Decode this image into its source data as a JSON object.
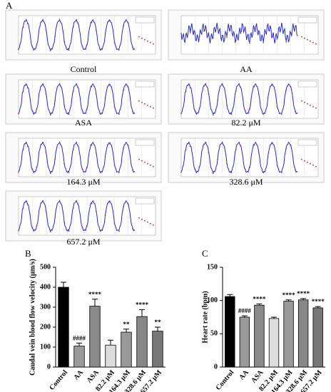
{
  "panel_a": {
    "label": "A",
    "traces": [
      {
        "caption": "Control"
      },
      {
        "caption": "AA"
      },
      {
        "caption": "ASA"
      },
      {
        "caption": "82.2 μM"
      },
      {
        "caption": "164.3 μM"
      },
      {
        "caption": "328.6 μM"
      },
      {
        "caption": "657.2 μM"
      }
    ]
  },
  "chart_data": [
    {
      "type": "bar",
      "label": "B",
      "y_label": "Caudal vein blood flow velocity (μm/s)",
      "categories": [
        "Control",
        "AA",
        "ASA",
        "82.2 μM",
        "164.3 μM",
        "328.6 μM",
        "657.2 μM"
      ],
      "values": [
        400,
        105,
        305,
        110,
        175,
        253,
        180
      ],
      "errors": [
        25,
        15,
        35,
        25,
        15,
        35,
        20
      ],
      "annotations": [
        null,
        "####",
        "****",
        null,
        "**",
        "****",
        "**"
      ],
      "colors": [
        "#000000",
        "#9a9a9a",
        "#8a8a8a",
        "#dcdcdc",
        "#999999",
        "#888888",
        "#777777"
      ],
      "ylim": [
        0,
        500
      ],
      "yticks": [
        0,
        100,
        200,
        300,
        400,
        500
      ]
    },
    {
      "type": "bar",
      "label": "C",
      "y_label": "Heart rate (bpm)",
      "categories": [
        "Control",
        "AA",
        "ASA",
        "82.2 μM",
        "164.3 μM",
        "328.6 μM",
        "657.2 μM"
      ],
      "values": [
        106,
        75,
        93,
        73,
        99,
        101,
        89
      ],
      "errors": [
        3,
        2,
        2,
        2,
        2,
        2,
        2
      ],
      "annotations": [
        null,
        "####",
        "****",
        null,
        "****",
        "****",
        "****"
      ],
      "colors": [
        "#000000",
        "#9a9a9a",
        "#8a8a8a",
        "#dcdcdc",
        "#999999",
        "#888888",
        "#777777"
      ],
      "ylim": [
        0,
        150
      ],
      "yticks": [
        0,
        50,
        100,
        150
      ]
    }
  ]
}
